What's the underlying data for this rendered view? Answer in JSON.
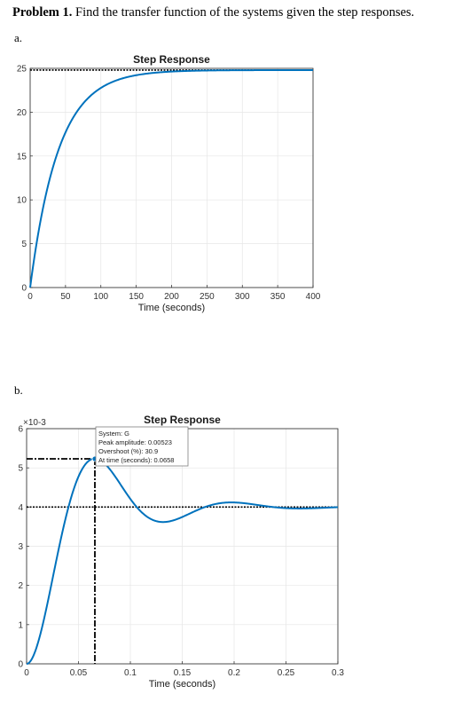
{
  "problem": {
    "number": "Problem 1.",
    "text": "Find the transfer function of the systems given the step responses."
  },
  "parts": [
    "a.",
    "b."
  ],
  "colors": {
    "response": "#0072BD",
    "marker": "#000000",
    "grid": "#e6e6e6",
    "axis": "#262626"
  },
  "chart_data": [
    {
      "type": "line",
      "title": "Step Response",
      "xlabel": "Time (seconds)",
      "ylabel": "",
      "xlim": [
        0,
        400
      ],
      "ylim": [
        0,
        25
      ],
      "xticks": [
        "0",
        "50",
        "100",
        "150",
        "200",
        "250",
        "300",
        "350",
        "400"
      ],
      "yticks": [
        "0",
        "5",
        "10",
        "15",
        "20",
        "25"
      ],
      "grid": true,
      "model": {
        "kind": "first-order",
        "gain": 24.8,
        "tau": 40
      },
      "final_value": 24.8,
      "series": [
        {
          "x": [
            0,
            10,
            20,
            30,
            40,
            60,
            80,
            100,
            120,
            150,
            200,
            250,
            300,
            350,
            400
          ],
          "y": [
            0,
            5.5,
            9.8,
            13.1,
            15.7,
            19.3,
            21.4,
            22.8,
            23.6,
            24.3,
            24.7,
            24.8,
            24.8,
            24.8,
            24.8
          ]
        }
      ]
    },
    {
      "type": "line",
      "title": "Step Response",
      "xlabel": "Time (seconds)",
      "ylabel": "",
      "xlim": [
        0,
        0.3
      ],
      "ylim": [
        0,
        0.006
      ],
      "exponent_label": "×10-3",
      "xticks": [
        "0",
        "0.05",
        "0.1",
        "0.15",
        "0.2",
        "0.25",
        "0.3"
      ],
      "yticks": [
        "0",
        "1",
        "2",
        "3",
        "4",
        "5",
        "6"
      ],
      "grid": true,
      "model": {
        "kind": "second-order",
        "final": 0.004,
        "zeta": 0.35,
        "wn": 51
      },
      "final_value": 0.004,
      "peak": {
        "time": 0.0658,
        "amplitude": 0.00523
      },
      "datatip": {
        "lines": [
          "System: G",
          "Peak amplitude: 0.00523",
          "Overshoot (%): 30.9",
          "At time (seconds): 0.0658"
        ]
      }
    }
  ]
}
